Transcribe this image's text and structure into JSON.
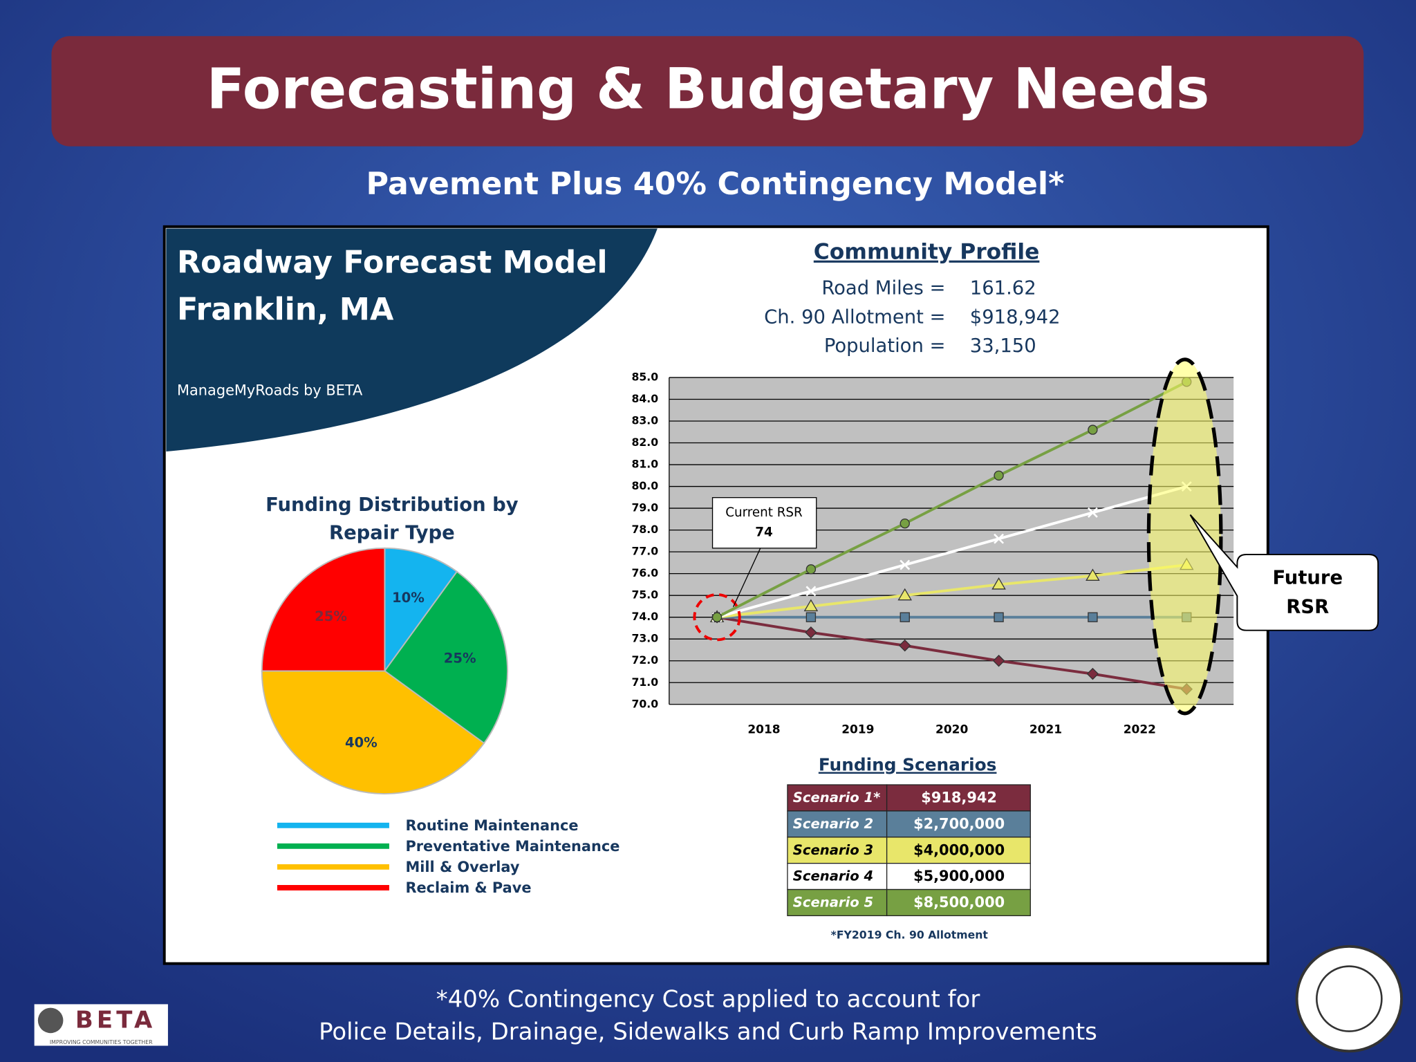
{
  "slide": {
    "title": "Forecasting & Budgetary Needs",
    "subtitle": "Pavement Plus 40% Contingency Model*",
    "panel_title": [
      "Roadway Forecast Model",
      "Franklin, MA"
    ],
    "credit": "ManageMyRoads by BETA",
    "profile": {
      "title": "Community Profile",
      "rows": [
        [
          "Road Miles =",
          "161.62"
        ],
        [
          "Ch. 90 Allotment =",
          "$918,942"
        ],
        [
          "Population =",
          "33,150"
        ]
      ]
    },
    "funding": {
      "title": "Funding Scenarios",
      "amounts": [
        "$918,942",
        "$2,700,000",
        "$4,000,000",
        "$5,900,000",
        "$8,500,000"
      ],
      "note": "*FY2019 Ch. 90 Allotment"
    },
    "footer": [
      "*40% Contingency Cost applied to account for",
      "Police Details, Drainage, Sidewalks and Curb Ramp Improvements"
    ],
    "logo": {
      "name": "BETA",
      "tagline": "IMPROVING COMMUNITIES TOGETHER"
    }
  },
  "chart_data": [
    {
      "type": "pie",
      "title": [
        "Funding Distribution  by",
        "Repair Type"
      ],
      "categories": [
        "Routine Maintenance",
        "Preventative Maintenance",
        "Mill & Overlay",
        "Reclaim & Pave"
      ],
      "values": [
        10,
        25,
        40,
        25
      ],
      "value_labels": [
        "10%",
        "25%",
        "40%",
        "25%"
      ],
      "colors": [
        "#14b4ef",
        "#00b050",
        "#ffc000",
        "#ff0000"
      ]
    },
    {
      "type": "line",
      "categories": [
        null,
        "2018",
        "2019",
        "2020",
        "2021",
        "2022"
      ],
      "ylim": [
        70,
        85
      ],
      "yticks": [
        {
          "value": 70,
          "label": "70.0"
        },
        {
          "value": 71,
          "label": "71.0"
        },
        {
          "value": 72,
          "label": "72.0"
        },
        {
          "value": 73,
          "label": "73.0"
        },
        {
          "value": 74,
          "label": "74.0"
        },
        {
          "value": 75,
          "label": "75.0"
        },
        {
          "value": 76,
          "label": "76.0"
        },
        {
          "value": 77,
          "label": "77.0"
        },
        {
          "value": 78,
          "label": "78.0"
        },
        {
          "value": 79,
          "label": "79.0"
        },
        {
          "value": 80,
          "label": "80.0"
        },
        {
          "value": 81,
          "label": "81.0"
        },
        {
          "value": 82,
          "label": "82.0"
        },
        {
          "value": 83,
          "label": "83.0"
        },
        {
          "value": 84,
          "label": "84.0"
        },
        {
          "value": 85,
          "label": "85.0"
        }
      ],
      "grid": true,
      "series": [
        {
          "name": "Scenario 1*",
          "color": "#7b2c3e",
          "marker": "diamond",
          "values": [
            74,
            73.3,
            72.7,
            72.0,
            71.4,
            70.7
          ]
        },
        {
          "name": "Scenario 2",
          "color": "#5a7f9a",
          "marker": "square",
          "values": [
            74,
            74,
            74,
            74,
            74,
            74
          ]
        },
        {
          "name": "Scenario 3",
          "color": "#e8e66a",
          "marker": "triangle",
          "values": [
            74,
            74.5,
            75.0,
            75.5,
            75.9,
            76.4
          ]
        },
        {
          "name": "Scenario 4",
          "color": "#ffffff",
          "marker": "x",
          "values": [
            74,
            75.2,
            76.4,
            77.6,
            78.8,
            80.0
          ]
        },
        {
          "name": "Scenario 5",
          "color": "#77a043",
          "marker": "circle",
          "values": [
            74,
            76.2,
            78.3,
            80.5,
            82.6,
            84.8
          ]
        }
      ],
      "annotations": {
        "current": [
          "Current RSR",
          "74"
        ],
        "future": [
          "Future",
          "RSR"
        ]
      }
    }
  ]
}
